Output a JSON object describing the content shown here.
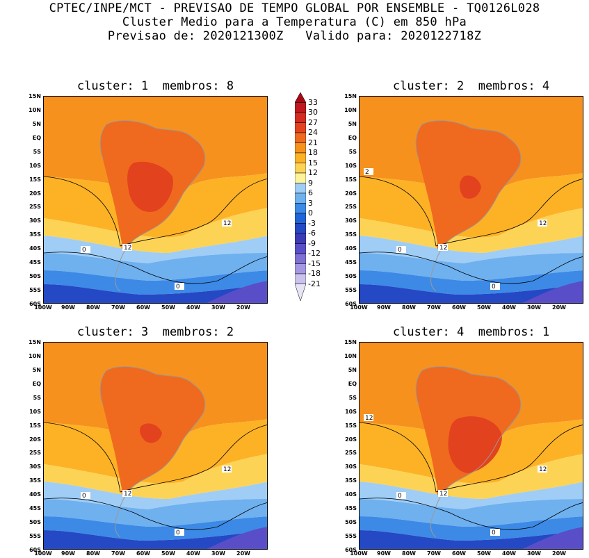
{
  "header": {
    "line1": "CPTEC/INPE/MCT - PREVISAO DE TEMPO GLOBAL POR ENSEMBLE - TQ0126L028",
    "line2": "Cluster Medio para a Temperatura (C) em 850 hPa",
    "line3": "Previsao de: 2020121300Z   Valido para: 2020122718Z"
  },
  "panels": [
    {
      "title": "cluster: 1  membros: 8",
      "lab_a": "12",
      "lab_b": "12",
      "lab_c": "0",
      "lab_d": "0"
    },
    {
      "title": "cluster: 2  membros: 4",
      "lab_a": "12",
      "lab_b": "12",
      "lab_c": "0",
      "lab_d": "0",
      "lab_e": "2"
    },
    {
      "title": "cluster: 3  membros: 2",
      "lab_a": "12",
      "lab_b": "12",
      "lab_c": "0",
      "lab_d": "0"
    },
    {
      "title": "cluster: 4  membros: 1",
      "lab_a": "12",
      "lab_b": "12",
      "lab_c": "0",
      "lab_d": "0",
      "lab_e": "12"
    }
  ],
  "lat_ticks": [
    "15N",
    "10N",
    "5N",
    "EQ",
    "5S",
    "10S",
    "15S",
    "20S",
    "25S",
    "30S",
    "35S",
    "40S",
    "45S",
    "50S",
    "55S",
    "60S"
  ],
  "lon_ticks": [
    "100W",
    "90W",
    "80W",
    "70W",
    "60W",
    "50W",
    "40W",
    "30W",
    "20W"
  ],
  "colorbar": {
    "levels": [
      "33",
      "30",
      "27",
      "24",
      "21",
      "18",
      "15",
      "12",
      "9",
      "6",
      "3",
      "0",
      "-3",
      "-6",
      "-9",
      "-12",
      "-15",
      "-18",
      "-21"
    ],
    "colors": [
      "#a50a14",
      "#c01820",
      "#d52a22",
      "#e3421e",
      "#ef6a1e",
      "#f7911e",
      "#fdb226",
      "#fdd356",
      "#fdf39a",
      "#9fcdf6",
      "#6fb0ef",
      "#3c8ae6",
      "#1f64d8",
      "#2548c4",
      "#3b3bb8",
      "#5a4ec8",
      "#7f70d6",
      "#a697e2",
      "#cbc3ee",
      "#e8e4f6"
    ]
  }
}
